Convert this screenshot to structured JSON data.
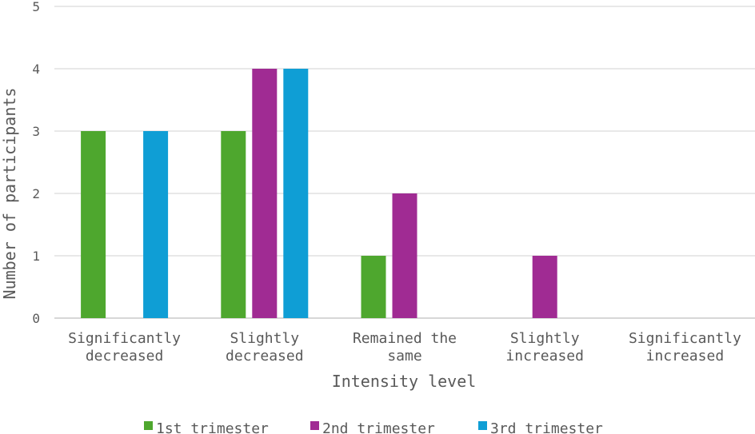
{
  "chart_data": {
    "type": "bar",
    "title": "",
    "xlabel": "Intensity level",
    "ylabel": "Number of participants",
    "ylim": [
      0,
      5
    ],
    "yticks": [
      0,
      1,
      2,
      3,
      4,
      5
    ],
    "grid": true,
    "legend_position": "bottom",
    "categories": [
      [
        "Significantly",
        "decreased"
      ],
      [
        "Slightly",
        "decreased"
      ],
      [
        "Remained the",
        "same"
      ],
      [
        "Slightly",
        "increased"
      ],
      [
        "Significantly",
        "increased"
      ]
    ],
    "series": [
      {
        "name": "1st trimester",
        "color": "#4EA72E",
        "values": [
          3,
          3,
          1,
          0,
          0
        ]
      },
      {
        "name": "2nd trimester",
        "color": "#A02B93",
        "values": [
          0,
          4,
          2,
          1,
          0
        ]
      },
      {
        "name": "3rd trimester",
        "color": "#0F9ED5",
        "values": [
          3,
          4,
          0,
          0,
          0
        ]
      }
    ]
  }
}
